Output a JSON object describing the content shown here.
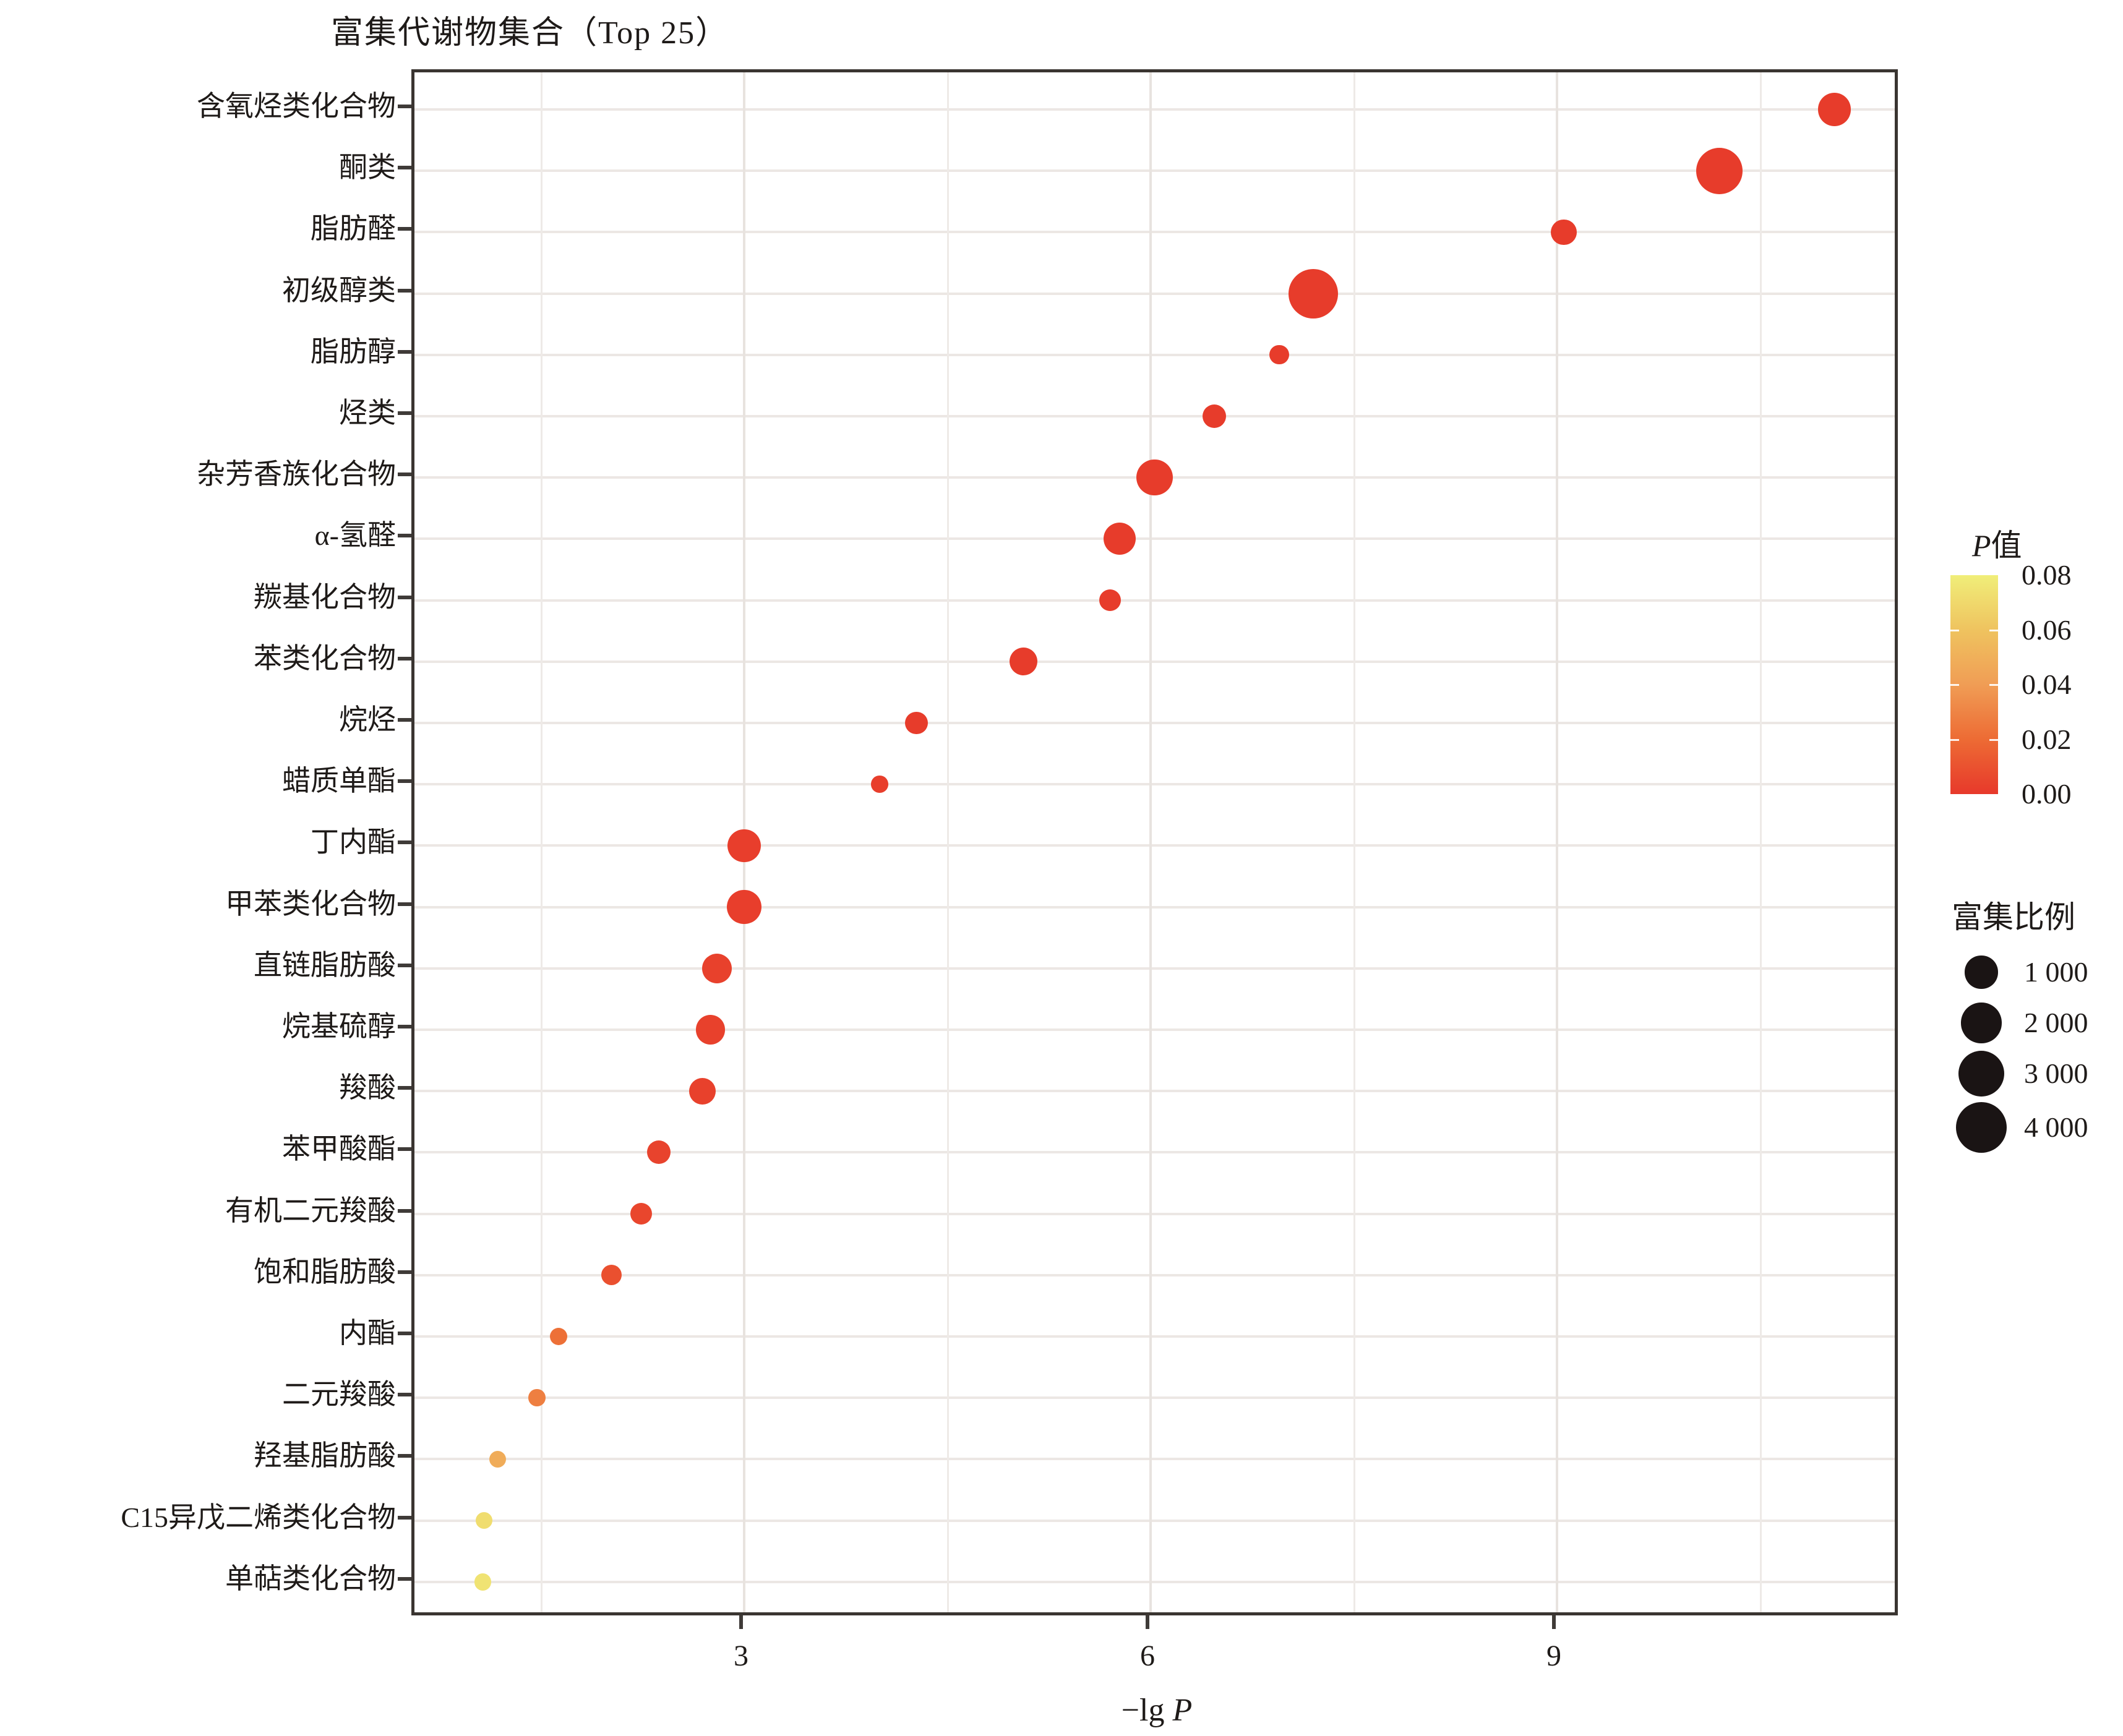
{
  "title": "富集代谢物集合（Top 25）",
  "x_axis": {
    "label_prefix": "−lg ",
    "label_italic": "P",
    "ticks": [
      3,
      6,
      9
    ],
    "minor_gridlines": [
      1.5,
      4.5,
      7.5,
      10.5
    ]
  },
  "legend_p": {
    "title_italic": "P",
    "title_suffix": "值",
    "tick_labels": [
      "0.08",
      "0.06",
      "0.04",
      "0.02",
      "0.00"
    ],
    "gradient_stops": [
      {
        "p": 0.0,
        "color": "#e7392b"
      },
      {
        "p": 0.02,
        "color": "#ed6b34"
      },
      {
        "p": 0.04,
        "color": "#f09d55"
      },
      {
        "p": 0.06,
        "color": "#efc35f"
      },
      {
        "p": 0.08,
        "color": "#f0ee79"
      }
    ]
  },
  "legend_size": {
    "title": "富集比例",
    "entries": [
      {
        "label": "1 000",
        "value": 1000
      },
      {
        "label": "2 000",
        "value": 2000
      },
      {
        "label": "3 000",
        "value": 3000
      },
      {
        "label": "4 000",
        "value": 4000
      }
    ]
  },
  "chart_data": {
    "type": "scatter",
    "title": "富集代谢物集合（Top 25）",
    "xlabel": "-lg P",
    "ylabel": "",
    "x_ticks": [
      3,
      6,
      9
    ],
    "x_range": [
      0.6,
      11.5
    ],
    "grid": true,
    "legend_position": "right",
    "color_legend": {
      "title": "P值",
      "range": [
        0.0,
        0.08
      ]
    },
    "size_legend": {
      "title": "富集比例",
      "values": [
        1000,
        2000,
        3000,
        4000
      ]
    },
    "points": [
      {
        "category": "含氧烃类化合物",
        "neg_lg_p": 11.05,
        "enrich_ratio": 1000,
        "p_value": 0.001
      },
      {
        "category": "酮类",
        "neg_lg_p": 10.2,
        "enrich_ratio": 3100,
        "p_value": 0.001
      },
      {
        "category": "脂肪醛",
        "neg_lg_p": 9.05,
        "enrich_ratio": 350,
        "p_value": 0.001
      },
      {
        "category": "初级醇类",
        "neg_lg_p": 7.2,
        "enrich_ratio": 3700,
        "p_value": 0.001
      },
      {
        "category": "脂肪醇",
        "neg_lg_p": 6.95,
        "enrich_ratio": 60,
        "p_value": 0.001
      },
      {
        "category": "烃类",
        "neg_lg_p": 6.47,
        "enrich_ratio": 230,
        "p_value": 0.001
      },
      {
        "category": "杂芳香族化合物",
        "neg_lg_p": 6.03,
        "enrich_ratio": 1400,
        "p_value": 0.001
      },
      {
        "category": "α-氢醛",
        "neg_lg_p": 5.77,
        "enrich_ratio": 930,
        "p_value": 0.001
      },
      {
        "category": "羰基化合物",
        "neg_lg_p": 5.7,
        "enrich_ratio": 150,
        "p_value": 0.001
      },
      {
        "category": "苯类化合物",
        "neg_lg_p": 5.06,
        "enrich_ratio": 520,
        "p_value": 0.001
      },
      {
        "category": "烷烃",
        "neg_lg_p": 4.27,
        "enrich_ratio": 200,
        "p_value": 0.001
      },
      {
        "category": "蜡质单酯",
        "neg_lg_p": 4.0,
        "enrich_ratio": 15,
        "p_value": 0.002
      },
      {
        "category": "丁内酯",
        "neg_lg_p": 3.0,
        "enrich_ratio": 1000,
        "p_value": 0.002
      },
      {
        "category": "甲苯类化合物",
        "neg_lg_p": 3.0,
        "enrich_ratio": 1150,
        "p_value": 0.002
      },
      {
        "category": "直链脂肪酸",
        "neg_lg_p": 2.8,
        "enrich_ratio": 680,
        "p_value": 0.003
      },
      {
        "category": "烷基硫醇",
        "neg_lg_p": 2.75,
        "enrich_ratio": 630,
        "p_value": 0.003
      },
      {
        "category": "羧酸",
        "neg_lg_p": 2.69,
        "enrich_ratio": 430,
        "p_value": 0.003
      },
      {
        "category": "苯甲酸酯",
        "neg_lg_p": 2.37,
        "enrich_ratio": 230,
        "p_value": 0.004
      },
      {
        "category": "有机二元羧酸",
        "neg_lg_p": 2.24,
        "enrich_ratio": 150,
        "p_value": 0.005
      },
      {
        "category": "饱和脂肪酸",
        "neg_lg_p": 2.02,
        "enrich_ratio": 100,
        "p_value": 0.009
      },
      {
        "category": "内酯",
        "neg_lg_p": 1.63,
        "enrich_ratio": 20,
        "p_value": 0.022
      },
      {
        "category": "二元羧酸",
        "neg_lg_p": 1.47,
        "enrich_ratio": 15,
        "p_value": 0.028
      },
      {
        "category": "羟基脂肪酸",
        "neg_lg_p": 1.18,
        "enrich_ratio": 12,
        "p_value": 0.048
      },
      {
        "category": "C15异戊二烯类化合物",
        "neg_lg_p": 1.08,
        "enrich_ratio": 10,
        "p_value": 0.072
      },
      {
        "category": "单萜类化合物",
        "neg_lg_p": 1.07,
        "enrich_ratio": 15,
        "p_value": 0.075
      }
    ]
  }
}
